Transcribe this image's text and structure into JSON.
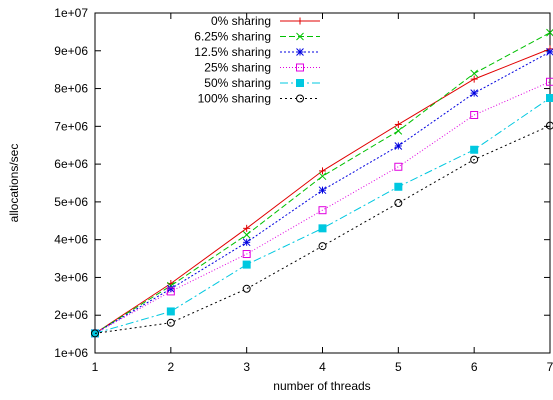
{
  "chart_data": {
    "type": "line",
    "title": "",
    "xlabel": "number of threads",
    "ylabel": "allocations/sec",
    "xlim": [
      1,
      7
    ],
    "ylim": [
      1000000,
      10000000
    ],
    "x_ticks": [
      1,
      2,
      3,
      4,
      5,
      6,
      7
    ],
    "x_tick_labels": [
      "1",
      "2",
      "3",
      "4",
      "5",
      "6",
      "7"
    ],
    "y_ticks": [
      1000000,
      2000000,
      3000000,
      4000000,
      5000000,
      6000000,
      7000000,
      8000000,
      9000000,
      10000000
    ],
    "y_tick_labels": [
      "1e+06",
      "2e+06",
      "3e+06",
      "4e+06",
      "5e+06",
      "6e+06",
      "7e+06",
      "8e+06",
      "9e+06",
      "1e+07"
    ],
    "grid": false,
    "legend_position": "top-left",
    "x": [
      1,
      2,
      3,
      4,
      5,
      6,
      7
    ],
    "series": [
      {
        "name": "0% sharing",
        "color": "#e00000",
        "marker": "plus",
        "dash": "",
        "values": [
          1520000,
          2840000,
          4300000,
          5820000,
          7050000,
          8250000,
          9050000
        ]
      },
      {
        "name": "6.25% sharing",
        "color": "#00c000",
        "marker": "cross",
        "dash": "6,3",
        "values": [
          1520000,
          2780000,
          4130000,
          5680000,
          6880000,
          8400000,
          9480000
        ]
      },
      {
        "name": "12.5% sharing",
        "color": "#0000e0",
        "marker": "star",
        "dash": "2,2",
        "values": [
          1520000,
          2700000,
          3930000,
          5310000,
          6480000,
          7880000,
          8970000
        ]
      },
      {
        "name": "25% sharing",
        "color": "#e000e0",
        "marker": "open-square",
        "dash": "1,2",
        "values": [
          1520000,
          2630000,
          3620000,
          4780000,
          5930000,
          7300000,
          8180000
        ]
      },
      {
        "name": "50% sharing",
        "color": "#00c8e0",
        "marker": "filled-square",
        "dash": "8,3,2,3",
        "values": [
          1520000,
          2100000,
          3340000,
          4300000,
          5400000,
          6380000,
          7750000
        ]
      },
      {
        "name": "100% sharing",
        "color": "#000000",
        "marker": "open-circle",
        "dash": "2,3",
        "values": [
          1520000,
          1800000,
          2700000,
          3830000,
          4970000,
          6120000,
          7020000
        ]
      }
    ]
  }
}
